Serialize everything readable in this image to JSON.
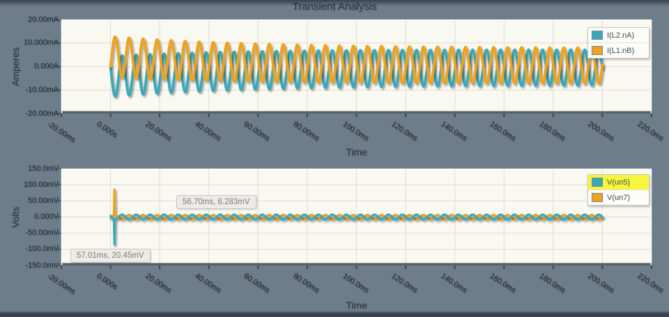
{
  "title": "Transient Analysis",
  "colors": {
    "background": "#6e7d8a",
    "plot_bg": "#faf9f1",
    "grid": "#dcdbd2",
    "axis_bar": "#566069",
    "tick_mark": "#39434d",
    "plot_edge": "#ffffff",
    "series_cyan": "#3aa8b9",
    "series_orange": "#efa21f",
    "text": "#2c3843",
    "legend_highlight": "#f6f63e",
    "tooltip_bg": "#ecebe7"
  },
  "chart_data": [
    {
      "type": "line",
      "title": "Transient Analysis",
      "xlabel": "Time",
      "ylabel": "Amperes",
      "x_unit": "ms",
      "x_range": [
        -20,
        220
      ],
      "y_unit": "mA",
      "y_range": [
        -20,
        20
      ],
      "grid": true,
      "legend_position": "top-right",
      "x_ticks": [
        "-20.00ms",
        "0.000s",
        "20.00ms",
        "40.00ms",
        "60.00ms",
        "80.00ms",
        "100.0ms",
        "120.0ms",
        "140.0ms",
        "160.0ms",
        "180.0ms",
        "200.0ms",
        "220.0ms"
      ],
      "y_ticks": [
        "20.00mA",
        "10.000mA",
        "0.000A",
        "-10.00mA",
        "-20.00mA"
      ],
      "series": [
        {
          "name": "I(L2.nA)",
          "color": "#3aa8b9",
          "highlighted": false,
          "z": 1,
          "model": "damped_offset_sine",
          "t_start_ms": 0,
          "t_end_ms": 200,
          "period_ms": 5.7,
          "phase_rad": -0.5,
          "sign": -1,
          "offset": {
            "start": 4.2,
            "end": 0.3,
            "tau_ms": 55
          },
          "amplitude": {
            "start": 8.6,
            "end": 7.4,
            "tau_ms": 100
          }
        },
        {
          "name": "I(L1.nB)",
          "color": "#efa21f",
          "highlighted": false,
          "z": 2,
          "model": "damped_offset_sine",
          "t_start_ms": 0,
          "t_end_ms": 200,
          "period_ms": 5.7,
          "phase_rad": -0.5,
          "sign": 1,
          "offset": {
            "start": 4.2,
            "end": 0.3,
            "tau_ms": 55
          },
          "amplitude": {
            "start": 8.6,
            "end": 7.4,
            "tau_ms": 100
          }
        }
      ]
    },
    {
      "type": "line",
      "title": "",
      "xlabel": "Time",
      "ylabel": "Volts",
      "x_unit": "ms",
      "x_range": [
        -20,
        220
      ],
      "y_unit": "mV",
      "y_range": [
        -150,
        150
      ],
      "grid": true,
      "legend_position": "top-right",
      "x_ticks": [
        "-20.00ms",
        "0.000s",
        "20.00ms",
        "40.00ms",
        "60.00ms",
        "80.00ms",
        "100.0ms",
        "120.0ms",
        "140.0ms",
        "160.0ms",
        "180.0ms",
        "200.0ms",
        "220.0ms"
      ],
      "y_ticks": [
        "150.0mV",
        "100.00mV",
        "50.00mV",
        "0.000V",
        "-50.00mV",
        "-100.0mV",
        "-150.0mV"
      ],
      "series": [
        {
          "name": "V(un5)",
          "color": "#3aa8b9",
          "highlighted": true,
          "z": 2,
          "model": "damped_offset_sine",
          "t_start_ms": 0,
          "t_end_ms": 200,
          "period_ms": 5.7,
          "phase_rad": -0.5,
          "sign": -1,
          "offset": {
            "start": 0,
            "end": 0,
            "tau_ms": 1
          },
          "amplitude": {
            "start": 7.5,
            "end": 7.5,
            "tau_ms": 1
          },
          "spike": {
            "t_ms": 1.6,
            "peak": -85
          }
        },
        {
          "name": "V(un7)",
          "color": "#efa21f",
          "highlighted": false,
          "z": 1,
          "model": "damped_offset_sine",
          "t_start_ms": 0,
          "t_end_ms": 200,
          "period_ms": 5.7,
          "phase_rad": -0.5,
          "sign": 1,
          "offset": {
            "start": 0,
            "end": 0,
            "tau_ms": 1
          },
          "amplitude": {
            "start": 6.5,
            "end": 6.5,
            "tau_ms": 1
          },
          "spike": {
            "t_ms": 1.6,
            "peak": 85
          }
        }
      ],
      "annotations": [
        {
          "text": "56.70ms, 6.283mV"
        },
        {
          "text": "57.01ms, 20.45mV"
        }
      ]
    }
  ]
}
